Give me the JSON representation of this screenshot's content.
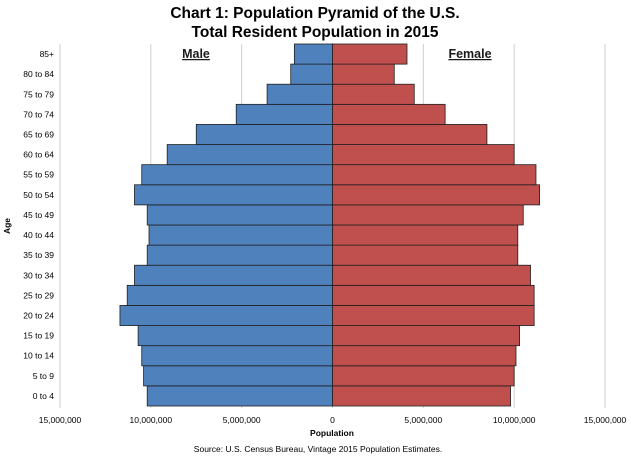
{
  "chart_data": {
    "type": "bar",
    "orientation": "horizontal",
    "title_line1": "Chart 1: Population Pyramid of the U.S.",
    "title_line2": "Total Resident Population in 2015",
    "xlabel": "Population",
    "ylabel": "Age",
    "xlim": [
      -15000000,
      15000000
    ],
    "x_ticks": [
      {
        "value": -15000000,
        "label": "15,000,000"
      },
      {
        "value": -10000000,
        "label": "10,000,000"
      },
      {
        "value": -5000000,
        "label": "5,000,000"
      },
      {
        "value": 0,
        "label": "0"
      },
      {
        "value": 5000000,
        "label": "5,000,000"
      },
      {
        "value": 10000000,
        "label": "10,000,000"
      },
      {
        "value": 15000000,
        "label": "15,000,000"
      }
    ],
    "grid": true,
    "categories": [
      "0 to 4",
      "5 to 9",
      "10 to 14",
      "15 to 19",
      "20 to 24",
      "25 to 29",
      "30 to 34",
      "35 to 39",
      "40 to 44",
      "45 to 49",
      "50 to 54",
      "55 to 59",
      "60 to 64",
      "65 to 69",
      "70 to 74",
      "75 to 79",
      "80 to 84",
      "85+"
    ],
    "series": [
      {
        "name": "Male",
        "color": "#4f81bd",
        "values": [
          10200000,
          10400000,
          10500000,
          10700000,
          11700000,
          11300000,
          10900000,
          10200000,
          10100000,
          10200000,
          10900000,
          10500000,
          9100000,
          7500000,
          5300000,
          3600000,
          2300000,
          2100000
        ]
      },
      {
        "name": "Female",
        "color": "#c0504d",
        "values": [
          9800000,
          10000000,
          10100000,
          10300000,
          11100000,
          11100000,
          10900000,
          10200000,
          10200000,
          10500000,
          11400000,
          11200000,
          10000000,
          8500000,
          6200000,
          4500000,
          3400000,
          4100000
        ]
      }
    ],
    "source": "Source: U.S. Census Bureau, Vintage 2015 Population Estimates."
  }
}
